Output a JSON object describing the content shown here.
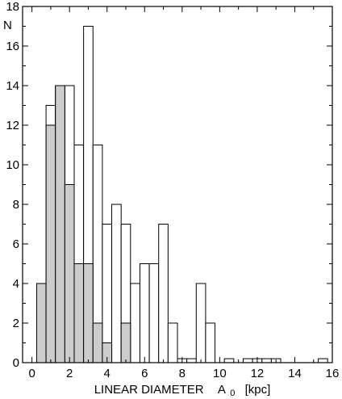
{
  "chart_data": {
    "type": "bar",
    "xlabel": "LINEAR DIAMETER",
    "xlabel_symbol": "A",
    "xlabel_subscript": "0",
    "xlabel_unit": "[kpc]",
    "ylabel": "N",
    "xlim": [
      -0.5,
      16
    ],
    "ylim": [
      0,
      18
    ],
    "x_ticks": [
      0,
      2,
      4,
      6,
      8,
      10,
      12,
      14,
      16
    ],
    "y_ticks": [
      0,
      2,
      4,
      6,
      8,
      10,
      12,
      14,
      16,
      18
    ],
    "bin_width": 0.5,
    "grid": false,
    "legend": "none",
    "colors": {
      "open": "#ffffff",
      "filled": "#cccccc",
      "stroke": "#000000"
    },
    "series": [
      {
        "style": "open",
        "x": [
          1.0,
          1.5,
          2.0,
          2.5,
          3.0,
          3.5,
          4.0,
          4.5,
          5.0,
          5.5,
          6.0,
          6.5,
          7.0,
          7.5,
          8.0,
          8.5,
          9.0,
          9.5,
          10.5,
          11.5,
          12.0,
          12.5,
          13.0,
          15.5
        ],
        "values": [
          13,
          14,
          14,
          11,
          17,
          11,
          7,
          8,
          7,
          4,
          5,
          5,
          7,
          2,
          0.2,
          0.2,
          4,
          2,
          0.2,
          0.2,
          0.2,
          0.2,
          0.2,
          0.2
        ]
      },
      {
        "style": "filled",
        "x": [
          0.5,
          1.0,
          1.5,
          2.0,
          2.5,
          3.0,
          3.5,
          4.0,
          5.0
        ],
        "values": [
          4,
          12,
          14,
          9,
          5,
          5,
          2,
          1,
          2
        ]
      }
    ]
  }
}
